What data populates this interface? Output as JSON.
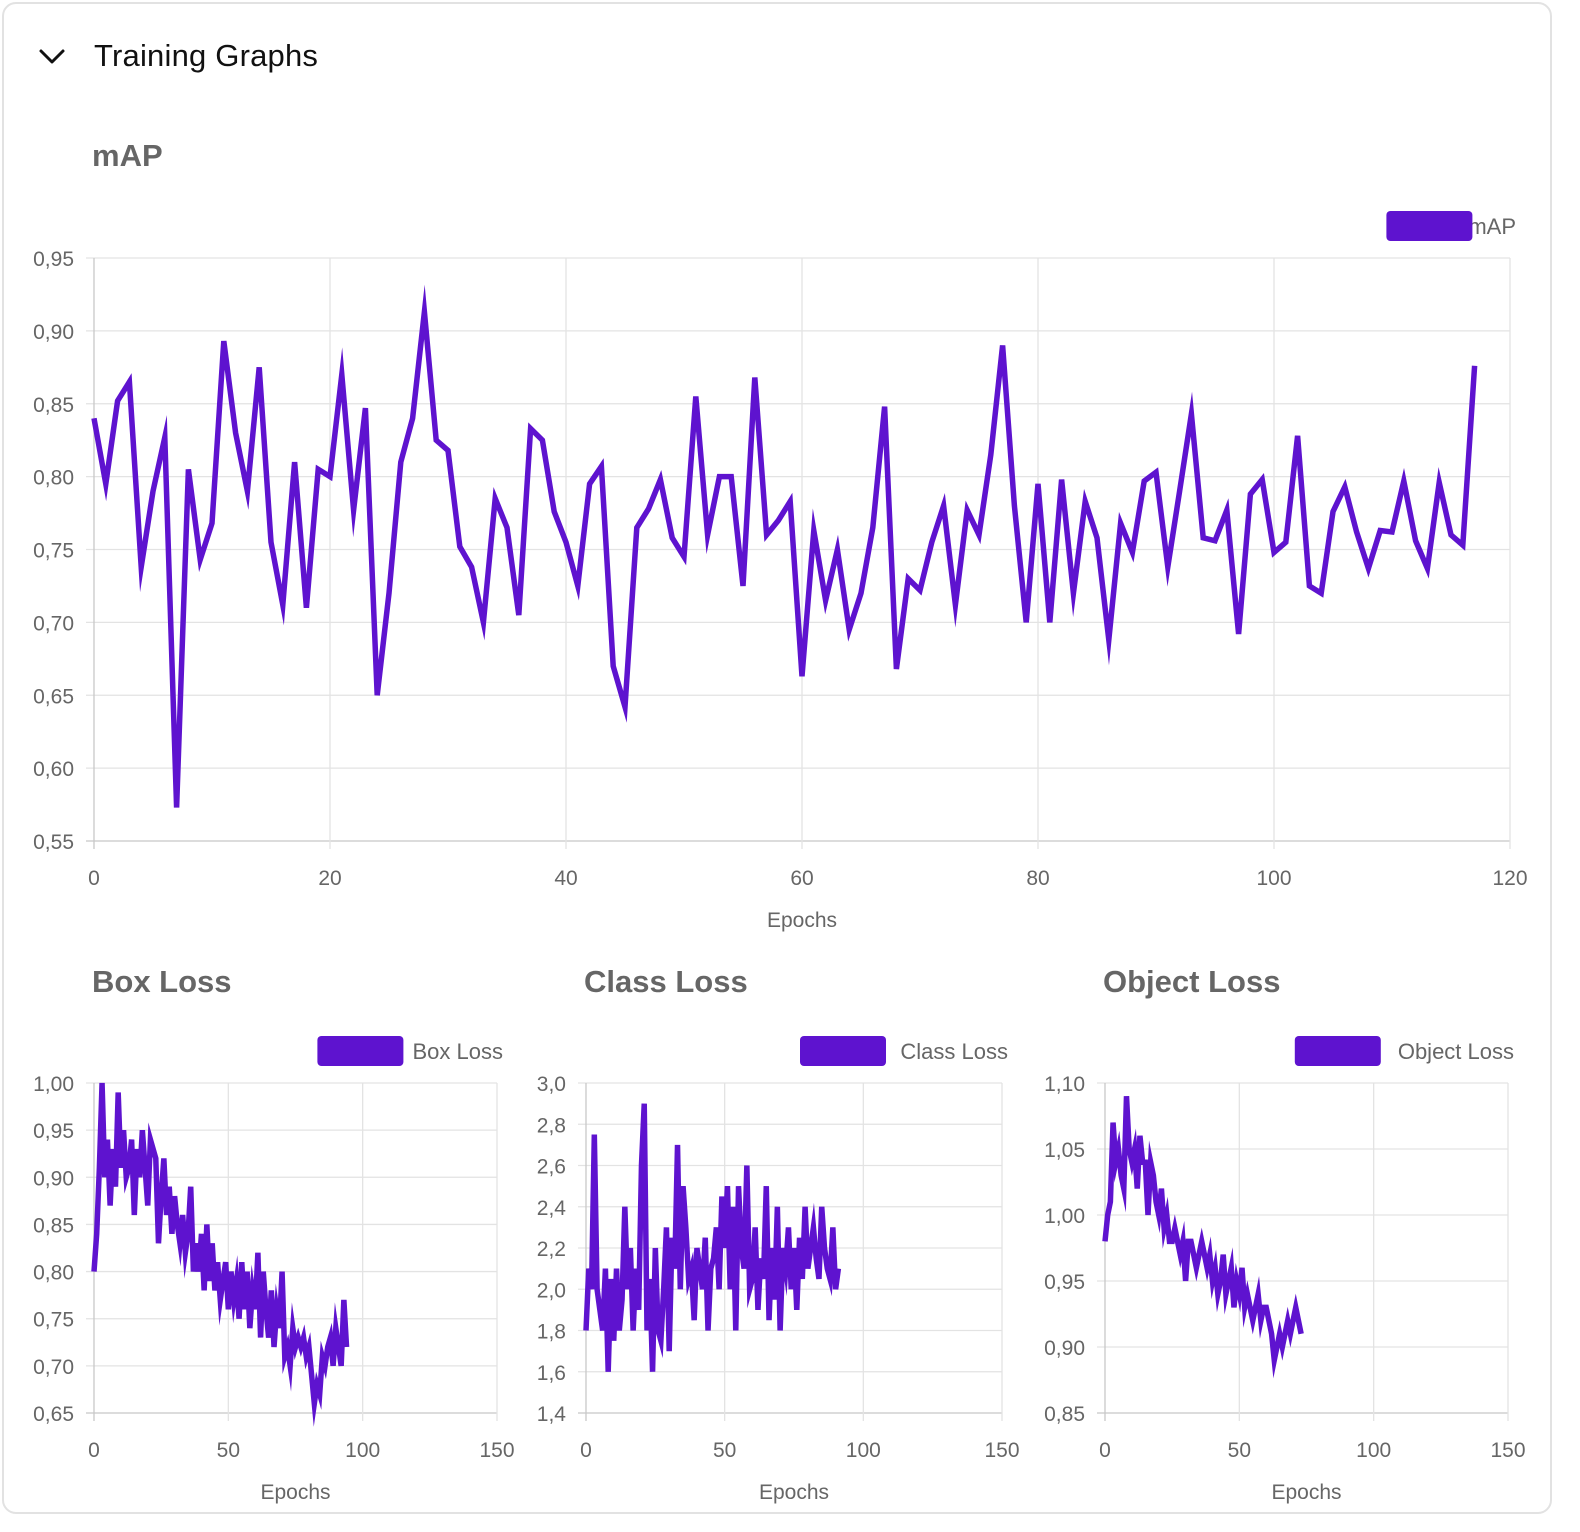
{
  "header": {
    "title": "Training Graphs"
  },
  "colors": {
    "line": "#5e13cf",
    "grid": "#e3e3e3",
    "axis": "#c8c8c8",
    "text": "#666666"
  },
  "icons": {
    "collapse": "chevron-down-icon"
  },
  "chart_data": [
    {
      "type": "line",
      "title": "mAP",
      "legend": "mAP",
      "legend_position": "top-right",
      "xlabel": "Epochs",
      "xlim": [
        0,
        120
      ],
      "xticks": [
        0,
        20,
        40,
        60,
        80,
        100,
        120
      ],
      "ylim": [
        0.55,
        0.95
      ],
      "yticks": [
        0.55,
        0.6,
        0.65,
        0.7,
        0.75,
        0.8,
        0.85,
        0.9,
        0.95
      ],
      "ydecimals": 2,
      "grid": true,
      "x_start": 0,
      "values": [
        0.84,
        0.795,
        0.852,
        0.865,
        0.738,
        0.79,
        0.827,
        0.573,
        0.805,
        0.743,
        0.768,
        0.893,
        0.83,
        0.79,
        0.875,
        0.755,
        0.712,
        0.81,
        0.71,
        0.805,
        0.8,
        0.87,
        0.777,
        0.847,
        0.65,
        0.72,
        0.81,
        0.84,
        0.913,
        0.825,
        0.818,
        0.752,
        0.738,
        0.7,
        0.785,
        0.765,
        0.705,
        0.833,
        0.825,
        0.776,
        0.755,
        0.725,
        0.795,
        0.807,
        0.67,
        0.642,
        0.765,
        0.778,
        0.798,
        0.758,
        0.745,
        0.855,
        0.76,
        0.8,
        0.8,
        0.725,
        0.868,
        0.76,
        0.77,
        0.783,
        0.663,
        0.763,
        0.715,
        0.75,
        0.695,
        0.72,
        0.765,
        0.848,
        0.668,
        0.73,
        0.722,
        0.755,
        0.78,
        0.712,
        0.777,
        0.76,
        0.815,
        0.89,
        0.78,
        0.7,
        0.795,
        0.7,
        0.798,
        0.72,
        0.783,
        0.758,
        0.688,
        0.768,
        0.748,
        0.797,
        0.803,
        0.738,
        0.79,
        0.843,
        0.758,
        0.756,
        0.777,
        0.692,
        0.788,
        0.798,
        0.748,
        0.755,
        0.828,
        0.725,
        0.72,
        0.776,
        0.793,
        0.762,
        0.737,
        0.763,
        0.762,
        0.797,
        0.756,
        0.737,
        0.796,
        0.76,
        0.753,
        0.876
      ]
    },
    {
      "type": "line",
      "title": "Box Loss",
      "legend": "Box Loss",
      "legend_position": "top-right",
      "xlabel": "Epochs",
      "xlim": [
        0,
        150
      ],
      "xticks": [
        0,
        50,
        100,
        150
      ],
      "ylim": [
        0.65,
        1.0
      ],
      "yticks": [
        0.65,
        0.7,
        0.75,
        0.8,
        0.85,
        0.9,
        0.95,
        1.0
      ],
      "ydecimals": 2,
      "grid": true,
      "x_start": 0,
      "values": [
        0.8,
        0.84,
        0.91,
        1.0,
        0.9,
        0.94,
        0.87,
        0.93,
        0.89,
        0.99,
        0.91,
        0.95,
        0.9,
        0.91,
        0.94,
        0.86,
        0.93,
        0.9,
        0.95,
        0.91,
        0.87,
        0.94,
        0.93,
        0.92,
        0.83,
        0.88,
        0.92,
        0.86,
        0.89,
        0.84,
        0.88,
        0.85,
        0.83,
        0.86,
        0.82,
        0.84,
        0.89,
        0.8,
        0.83,
        0.8,
        0.84,
        0.78,
        0.85,
        0.79,
        0.83,
        0.78,
        0.81,
        0.77,
        0.79,
        0.81,
        0.76,
        0.8,
        0.77,
        0.79,
        0.75,
        0.81,
        0.76,
        0.8,
        0.74,
        0.78,
        0.76,
        0.82,
        0.73,
        0.8,
        0.76,
        0.73,
        0.78,
        0.72,
        0.76,
        0.74,
        0.8,
        0.71,
        0.72,
        0.7,
        0.74,
        0.72,
        0.73,
        0.72,
        0.73,
        0.71,
        0.72,
        0.69,
        0.66,
        0.68,
        0.67,
        0.71,
        0.7,
        0.72,
        0.73,
        0.7,
        0.74,
        0.72,
        0.7,
        0.77,
        0.72
      ]
    },
    {
      "type": "line",
      "title": "Class Loss",
      "legend": "Class Loss",
      "legend_position": "top-right",
      "xlabel": "Epochs",
      "xlim": [
        0,
        150
      ],
      "xticks": [
        0,
        50,
        100,
        150
      ],
      "ylim": [
        1.4,
        3.0
      ],
      "yticks": [
        1.4,
        1.6,
        1.8,
        2.0,
        2.2,
        2.4,
        2.6,
        2.8,
        3.0
      ],
      "ydecimals": 1,
      "grid": true,
      "x_start": 0,
      "values": [
        1.8,
        2.1,
        2.0,
        2.75,
        2.0,
        1.9,
        1.8,
        2.1,
        1.6,
        2.05,
        1.75,
        2.1,
        1.8,
        1.95,
        2.4,
        2.0,
        2.2,
        1.8,
        2.1,
        1.9,
        2.6,
        2.9,
        1.8,
        2.05,
        1.6,
        2.2,
        1.8,
        1.75,
        2.0,
        2.3,
        1.7,
        2.25,
        2.1,
        2.7,
        2.0,
        2.5,
        2.3,
        2.05,
        2.1,
        1.85,
        2.2,
        2.1,
        2.0,
        2.25,
        1.8,
        2.1,
        2.15,
        2.3,
        2.0,
        2.45,
        2.2,
        2.5,
        2.0,
        2.4,
        1.8,
        2.5,
        2.2,
        2.1,
        2.6,
        2.0,
        2.05,
        2.3,
        1.9,
        2.15,
        2.05,
        2.5,
        1.85,
        2.2,
        1.95,
        2.4,
        1.8,
        2.2,
        2.1,
        2.3,
        2.0,
        2.2,
        1.9,
        2.25,
        2.05,
        2.4,
        2.1,
        2.2,
        2.3,
        2.15,
        2.05,
        2.4,
        2.2,
        2.1,
        2.05,
        2.3,
        2.0,
        2.1
      ]
    },
    {
      "type": "line",
      "title": "Object Loss",
      "legend": "Object Loss",
      "legend_position": "top-right",
      "xlabel": "Epochs",
      "xlim": [
        0,
        150
      ],
      "xticks": [
        0,
        50,
        100,
        150
      ],
      "ylim": [
        0.85,
        1.1
      ],
      "yticks": [
        0.85,
        0.9,
        0.95,
        1.0,
        1.05,
        1.1
      ],
      "ydecimals": 2,
      "grid": true,
      "x_start": 0,
      "values": [
        0.98,
        1.0,
        1.01,
        1.07,
        1.04,
        1.05,
        1.03,
        1.02,
        1.09,
        1.05,
        1.04,
        1.05,
        1.02,
        1.06,
        1.04,
        1.04,
        1.0,
        1.04,
        1.03,
        1.01,
        1.0,
        1.02,
        0.99,
        1.0,
        0.98,
        0.98,
        0.99,
        0.98,
        0.97,
        0.98,
        0.95,
        0.98,
        0.98,
        0.97,
        0.96,
        0.97,
        0.98,
        0.97,
        0.96,
        0.97,
        0.95,
        0.96,
        0.94,
        0.95,
        0.97,
        0.94,
        0.95,
        0.96,
        0.93,
        0.95,
        0.94,
        0.96,
        0.93,
        0.94,
        0.93,
        0.92,
        0.93,
        0.94,
        0.92,
        0.93,
        0.93,
        0.92,
        0.91,
        0.89,
        0.9,
        0.91,
        0.9,
        0.91,
        0.92,
        0.91,
        0.92,
        0.93,
        0.92,
        0.91
      ]
    }
  ]
}
